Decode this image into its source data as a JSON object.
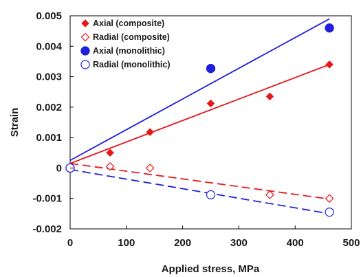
{
  "chart_data": {
    "type": "scatter",
    "title": "",
    "xlabel": "Applied stress, MPa",
    "ylabel": "Strain",
    "xlim": [
      0,
      500
    ],
    "ylim": [
      -0.002,
      0.005
    ],
    "xticks": [
      0,
      100,
      200,
      300,
      400,
      500
    ],
    "xtick_labels": [
      "0",
      "100",
      "200",
      "300",
      "400",
      "500"
    ],
    "yticks": [
      -0.002,
      -0.001,
      0,
      0.001,
      0.002,
      0.003,
      0.004,
      0.005
    ],
    "ytick_labels": [
      "-0.002",
      "-0.001",
      "0",
      "0.001",
      "0.002",
      "0.003",
      "0.004",
      "0.005"
    ],
    "grid": false,
    "legend_position": "top-left",
    "series": [
      {
        "name": "Axial (composite)",
        "marker": "diamond-filled",
        "color": "#e8161b",
        "x": [
          0,
          71,
          142,
          250,
          355,
          461
        ],
        "y": [
          0,
          0.0005,
          0.00118,
          0.00212,
          0.00235,
          0.0034
        ],
        "trendline": {
          "style": "solid",
          "x": [
            0,
            461
          ],
          "y": [
            0.00015,
            0.0034
          ]
        }
      },
      {
        "name": "Radial (composite)",
        "marker": "diamond-open",
        "color": "#e8161b",
        "x": [
          0,
          71,
          142,
          355,
          461
        ],
        "y": [
          0,
          5e-05,
          0.0,
          -0.00088,
          -0.001
        ],
        "trendline": {
          "style": "dashed",
          "x": [
            0,
            461
          ],
          "y": [
            0.00015,
            -0.00102
          ]
        }
      },
      {
        "name": "Axial (monolithic)",
        "marker": "circle-filled",
        "color": "#1f1fdc",
        "x": [
          0,
          250,
          461
        ],
        "y": [
          0,
          0.00327,
          0.0046
        ],
        "trendline": {
          "style": "solid",
          "x": [
            0,
            461
          ],
          "y": [
            0.00025,
            0.0049
          ]
        }
      },
      {
        "name": "Radial (monolithic)",
        "marker": "circle-open",
        "color": "#1f1fdc",
        "x": [
          0,
          250,
          461
        ],
        "y": [
          0,
          -0.00088,
          -0.00145
        ],
        "trendline": {
          "style": "dashed",
          "x": [
            0,
            461
          ],
          "y": [
            -5e-05,
            -0.0015
          ]
        }
      }
    ]
  }
}
